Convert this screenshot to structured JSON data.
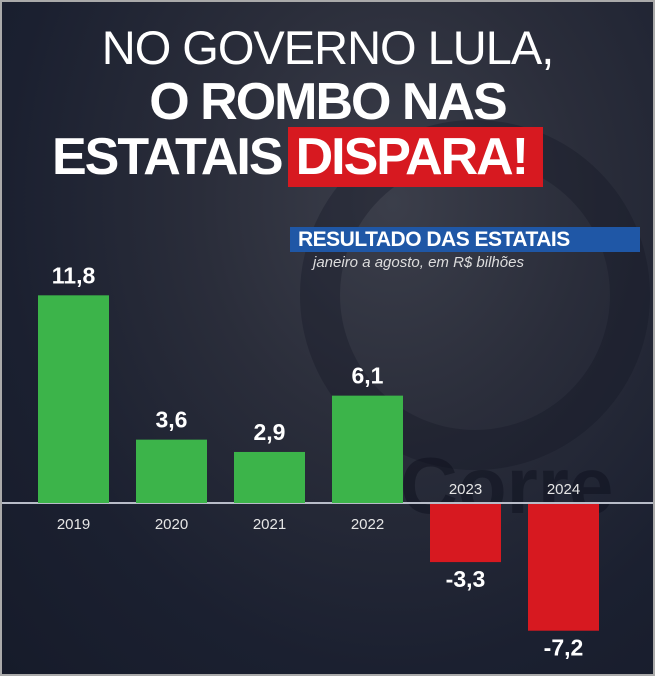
{
  "headline": {
    "line1": "NO GOVERNO LULA,",
    "line2": "O ROMBO NAS",
    "line3a": "ESTATAIS",
    "line3b": "DISPARA!"
  },
  "colors": {
    "positive": "#3cb44a",
    "negative": "#d71920",
    "accent": "#1f57a6"
  },
  "chart_data": {
    "type": "bar",
    "title": "RESULTADO DAS ESTATAIS",
    "subtitle": "janeiro a agosto, em R$ bilhões",
    "categories": [
      "2019",
      "2020",
      "2021",
      "2022",
      "2023",
      "2024"
    ],
    "values": [
      11.8,
      3.6,
      2.9,
      6.1,
      -3.3,
      -7.2
    ],
    "labels": [
      "11,8",
      "3,6",
      "2,9",
      "6,1",
      "-3,3",
      "-7,2"
    ],
    "xlabel": "",
    "ylabel": "",
    "ylim": [
      -7.5,
      12
    ],
    "grid": false
  }
}
